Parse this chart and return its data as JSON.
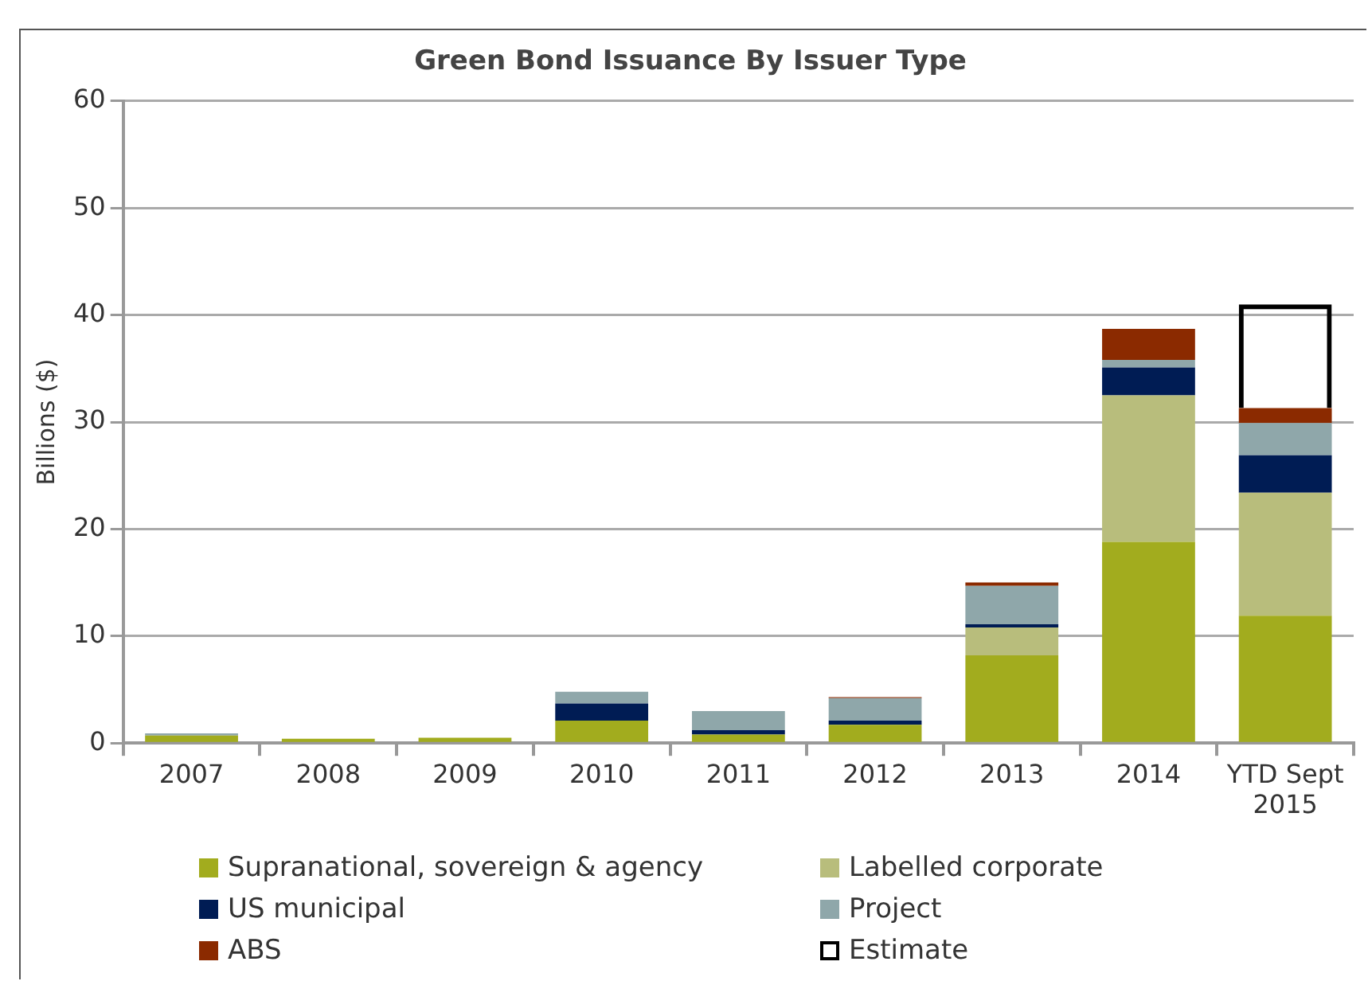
{
  "chart_data": {
    "type": "bar",
    "title": "Green Bond Issuance By Issuer Type",
    "ylabel": "Billions ($)",
    "categories": [
      "2007",
      "2008",
      "2009",
      "2010",
      "2011",
      "2012",
      "2013",
      "2014",
      "YTD Sept 2015"
    ],
    "stacked": true,
    "ylim": [
      0,
      60
    ],
    "yticks": [
      0,
      10,
      20,
      30,
      40,
      50,
      60
    ],
    "grid": "y",
    "legend": "bottom",
    "series": [
      {
        "name": "Supranational, sovereign & agency",
        "color": "#a2ac1e",
        "values": [
          0.7,
          0.4,
          0.5,
          2.1,
          0.8,
          1.7,
          8.2,
          18.8,
          11.9
        ]
      },
      {
        "name": "Labelled corporate",
        "color": "#b8bd7c",
        "values": [
          0,
          0,
          0,
          0,
          0,
          0,
          2.6,
          13.7,
          11.5
        ]
      },
      {
        "name": "US municipal",
        "color": "#001c54",
        "values": [
          0,
          0,
          0,
          1.6,
          0.4,
          0.4,
          0.3,
          2.6,
          3.5
        ]
      },
      {
        "name": "Project",
        "color": "#8fa7aa",
        "values": [
          0.2,
          0,
          0,
          1.1,
          1.8,
          2.1,
          3.6,
          0.7,
          3.0
        ]
      },
      {
        "name": "ABS",
        "color": "#8b2a00",
        "values": [
          0,
          0,
          0,
          0,
          0,
          0.1,
          0.3,
          2.9,
          1.4
        ]
      },
      {
        "name": "Estimate",
        "color": "#000000",
        "line_style": "dashed",
        "values": [
          null,
          null,
          null,
          null,
          null,
          null,
          null,
          null,
          9.7
        ]
      }
    ]
  }
}
